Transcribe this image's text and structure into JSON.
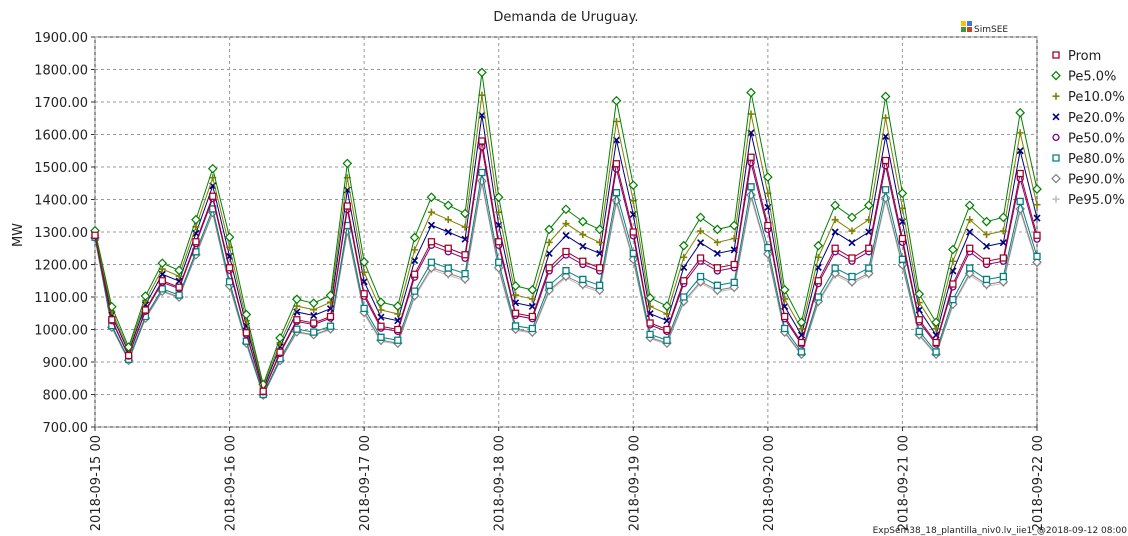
{
  "chart_data": {
    "type": "line",
    "title": "Demanda de Uruguay.",
    "ylabel": "MW",
    "logo": "SimSEE",
    "footer": "ExpSem38_18_plantilla_niv0.lv_iie1_@2018-09-12 08:00",
    "x": [
      "2018-09-15 00",
      "2018-09-15 03",
      "2018-09-15 06",
      "2018-09-15 09",
      "2018-09-15 12",
      "2018-09-15 15",
      "2018-09-15 18",
      "2018-09-15 21",
      "2018-09-16 00",
      "2018-09-16 03",
      "2018-09-16 06",
      "2018-09-16 09",
      "2018-09-16 12",
      "2018-09-16 15",
      "2018-09-16 18",
      "2018-09-16 21",
      "2018-09-17 00",
      "2018-09-17 03",
      "2018-09-17 06",
      "2018-09-17 09",
      "2018-09-17 12",
      "2018-09-17 15",
      "2018-09-17 18",
      "2018-09-17 21",
      "2018-09-18 00",
      "2018-09-18 03",
      "2018-09-18 06",
      "2018-09-18 09",
      "2018-09-18 12",
      "2018-09-18 15",
      "2018-09-18 18",
      "2018-09-18 21",
      "2018-09-19 00",
      "2018-09-19 03",
      "2018-09-19 06",
      "2018-09-19 09",
      "2018-09-19 12",
      "2018-09-19 15",
      "2018-09-19 18",
      "2018-09-19 21",
      "2018-09-20 00",
      "2018-09-20 03",
      "2018-09-20 06",
      "2018-09-20 09",
      "2018-09-20 12",
      "2018-09-20 15",
      "2018-09-20 18",
      "2018-09-20 21",
      "2018-09-21 00",
      "2018-09-21 03",
      "2018-09-21 06",
      "2018-09-21 09",
      "2018-09-21 12",
      "2018-09-21 15",
      "2018-09-21 18",
      "2018-09-21 21",
      "2018-09-22 00"
    ],
    "xlim": [
      "2018-09-15 00",
      "2018-09-22 00"
    ],
    "xticks": [
      "2018-09-15 00",
      "2018-09-16 00",
      "2018-09-17 00",
      "2018-09-18 00",
      "2018-09-19 00",
      "2018-09-20 00",
      "2018-09-21 00",
      "2018-09-22 00"
    ],
    "ylim": [
      700,
      1900
    ],
    "yticks": [
      {
        "value": 700,
        "label": "700.00"
      },
      {
        "value": 800,
        "label": "800.00"
      },
      {
        "value": 900,
        "label": "900.00"
      },
      {
        "value": 1000,
        "label": "1000.00"
      },
      {
        "value": 1100,
        "label": "1100.00"
      },
      {
        "value": 1200,
        "label": "1200.00"
      },
      {
        "value": 1300,
        "label": "1300.00"
      },
      {
        "value": 1400,
        "label": "1400.00"
      },
      {
        "value": 1500,
        "label": "1500.00"
      },
      {
        "value": 1600,
        "label": "1600.00"
      },
      {
        "value": 1700,
        "label": "1700.00"
      },
      {
        "value": 1800,
        "label": "1800.00"
      },
      {
        "value": 1900,
        "label": "1900.00"
      }
    ],
    "grid": true,
    "legend": "right",
    "series": [
      {
        "name": "Prom",
        "color": "#a0002a",
        "marker": "square",
        "values": [
          1290,
          1030,
          920,
          1060,
          1150,
          1130,
          1270,
          1410,
          1190,
          990,
          810,
          930,
          1030,
          1020,
          1040,
          1380,
          1110,
          1010,
          1000,
          1170,
          1270,
          1250,
          1230,
          1580,
          1270,
          1050,
          1040,
          1190,
          1240,
          1210,
          1190,
          1510,
          1300,
          1020,
          1000,
          1150,
          1220,
          1190,
          1200,
          1530,
          1320,
          1040,
          960,
          1150,
          1250,
          1220,
          1250,
          1520,
          1280,
          1030,
          960,
          1140,
          1250,
          1210,
          1220,
          1480,
          1290
        ]
      },
      {
        "name": "Pe5.0%",
        "color": "#008000",
        "marker": "diamond",
        "values": [
          1304,
          1070,
          946,
          1103,
          1204,
          1182,
          1338,
          1495,
          1284,
          1046,
          831,
          974,
          1093,
          1081,
          1105,
          1511,
          1208,
          1084,
          1072,
          1283,
          1407,
          1382,
          1357,
          1791,
          1407,
          1134,
          1122,
          1308,
          1370,
          1332,
          1308,
          1704,
          1444,
          1097,
          1072,
          1258,
          1345,
          1308,
          1320,
          1729,
          1469,
          1122,
          1022,
          1258,
          1382,
          1345,
          1382,
          1717,
          1419,
          1109,
          1022,
          1246,
          1382,
          1332,
          1345,
          1667,
          1432
        ]
      },
      {
        "name": "Pe10.0%",
        "color": "#808000",
        "marker": "plus",
        "values": [
          1299,
          1056,
          938,
          1089,
          1186,
          1164,
          1316,
          1467,
          1253,
          1027,
          824,
          959,
          1072,
          1061,
          1084,
          1467,
          1176,
          1060,
          1048,
          1245,
          1361,
          1338,
          1315,
          1721,
          1361,
          1106,
          1094,
          1268,
          1326,
          1292,
          1268,
          1640,
          1396,
          1071,
          1048,
          1222,
          1303,
          1268,
          1280,
          1663,
          1419,
          1094,
          1002,
          1222,
          1338,
          1303,
          1338,
          1651,
          1373,
          1083,
          1002,
          1210,
          1338,
          1292,
          1303,
          1605,
          1384
        ]
      },
      {
        "name": "Pe20.0%",
        "color": "#000080",
        "marker": "cross",
        "values": [
          1295,
          1045,
          930,
          1076,
          1170,
          1149,
          1296,
          1442,
          1225,
          1011,
          818,
          947,
          1054,
          1043,
          1064,
          1429,
          1147,
          1038,
          1027,
          1212,
          1321,
          1300,
          1278,
          1659,
          1321,
          1082,
          1071,
          1234,
          1289,
          1256,
          1234,
          1583,
          1354,
          1049,
          1027,
          1191,
          1267,
          1234,
          1245,
          1605,
          1376,
          1071,
          983,
          1191,
          1300,
          1267,
          1300,
          1594,
          1332,
          1060,
          983,
          1180,
          1300,
          1256,
          1267,
          1550,
          1343
        ]
      },
      {
        "name": "Pe50.0%",
        "color": "#800080",
        "marker": "circle",
        "values": [
          1289,
          1027,
          918,
          1056,
          1145,
          1126,
          1264,
          1403,
          1182,
          985,
          808,
          926,
          1025,
          1015,
          1035,
          1369,
          1102,
          1004,
          994,
          1161,
          1259,
          1239,
          1219,
          1562,
          1259,
          1043,
          1033,
          1180,
          1229,
          1200,
          1180,
          1494,
          1288,
          1014,
          994,
          1141,
          1210,
          1180,
          1190,
          1513,
          1308,
          1033,
          955,
          1141,
          1239,
          1210,
          1239,
          1504,
          1268,
          1023,
          955,
          1131,
          1239,
          1200,
          1210,
          1464,
          1278
        ]
      },
      {
        "name": "Pe80.0%",
        "color": "#008080",
        "marker": "square",
        "values": [
          1284,
          1012,
          908,
          1040,
          1125,
          1106,
          1239,
          1371,
          1147,
          964,
          800,
          910,
          1001,
          992,
          1010,
          1320,
          1065,
          976,
          967,
          1118,
          1207,
          1189,
          1172,
          1483,
          1207,
          1011,
          1003,
          1136,
          1181,
          1154,
          1136,
          1421,
          1234,
          985,
          967,
          1100,
          1163,
          1136,
          1145,
          1439,
          1252,
          1003,
          931,
          1100,
          1189,
          1163,
          1189,
          1430,
          1216,
          994,
          931,
          1092,
          1189,
          1154,
          1163,
          1394,
          1225
        ]
      },
      {
        "name": "Pe90.0%",
        "color": "#808080",
        "marker": "diamond",
        "values": [
          1282,
          1007,
          905,
          1035,
          1118,
          1100,
          1230,
          1360,
          1135,
          958,
          798,
          904,
          993,
          984,
          1002,
          1304,
          1053,
          967,
          958,
          1104,
          1190,
          1173,
          1156,
          1457,
          1190,
          1001,
          992,
          1121,
          1164,
          1139,
          1121,
          1397,
          1216,
          975,
          958,
          1087,
          1147,
          1121,
          1130,
          1414,
          1233,
          992,
          924,
          1087,
          1173,
          1147,
          1173,
          1405,
          1199,
          984,
          924,
          1078,
          1173,
          1139,
          1147,
          1371,
          1207
        ]
      },
      {
        "name": "Pe95.0%",
        "color": "#c0c0c0",
        "marker": "plus",
        "values": [
          1281,
          1005,
          903,
          1033,
          1116,
          1098,
          1227,
          1357,
          1131,
          955,
          797,
          902,
          990,
          982,
          999,
          1298,
          1048,
          963,
          955,
          1099,
          1184,
          1167,
          1150,
          1448,
          1184,
          997,
          989,
          1116,
          1159,
          1133,
          1116,
          1388,
          1210,
          972,
          955,
          1082,
          1142,
          1116,
          1125,
          1405,
          1227,
          989,
          921,
          1082,
          1167,
          1142,
          1167,
          1397,
          1193,
          980,
          921,
          1074,
          1167,
          1133,
          1142,
          1363,
          1201
        ]
      }
    ]
  }
}
